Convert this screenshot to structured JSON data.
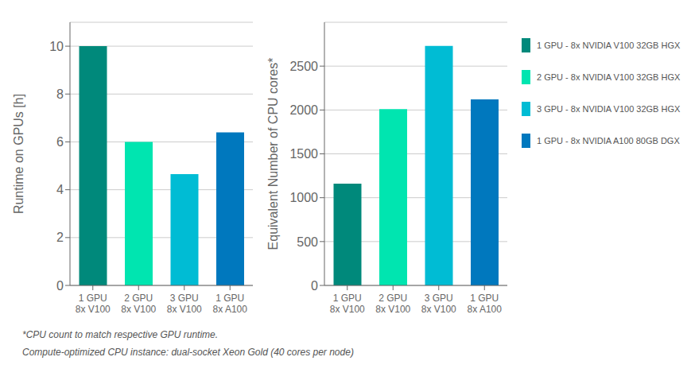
{
  "chart_data": [
    {
      "type": "bar",
      "categories": [
        "1 GPU\n8x V100",
        "2 GPU\n8x V100",
        "3 GPU\n8x V100",
        "1 GPU\n8x A100"
      ],
      "ylabel": "Runtime on GPUs [h]",
      "ylim": [
        0,
        11
      ],
      "yticks": [
        0,
        2,
        4,
        6,
        8,
        10
      ],
      "grid": true,
      "stacked": true,
      "legend": "right",
      "series": [
        {
          "name": "1 GPU - 8x NVIDIA V100 32GB HGX",
          "color": "#00897B",
          "values": [
            10.0,
            null,
            null,
            null
          ]
        },
        {
          "name": "2 GPU - 8x NVIDIA V100 32GB HGX",
          "color": "#00E5B0",
          "values": [
            null,
            6.0,
            null,
            null
          ]
        },
        {
          "name": "3 GPU - 8x NVIDIA V100 32GB HGX",
          "color": "#00BCD4",
          "values": [
            null,
            null,
            4.65,
            null
          ]
        },
        {
          "name": "1 GPU - 8x NVIDIA A100 80GB DGX",
          "color": "#0078BE",
          "values": [
            null,
            null,
            null,
            6.4
          ]
        }
      ]
    },
    {
      "type": "bar",
      "categories": [
        "1 GPU\n8x V100",
        "2 GPU\n8x V100",
        "3 GPU\n8x V100",
        "1 GPU\n8x A100"
      ],
      "ylabel": "Equivalent Number of CPU cores*",
      "ylim": [
        0,
        3000
      ],
      "yticks": [
        0,
        500,
        1000,
        1500,
        2000,
        2500
      ],
      "grid": true,
      "stacked": true,
      "legend": "right",
      "series": [
        {
          "name": "1 GPU - 8x NVIDIA V100 32GB HGX",
          "color": "#00897B",
          "values": [
            1160,
            null,
            null,
            null
          ]
        },
        {
          "name": "2 GPU - 8x NVIDIA V100 32GB HGX",
          "color": "#00E5B0",
          "values": [
            null,
            2010,
            null,
            null
          ]
        },
        {
          "name": "3 GPU - 8x NVIDIA V100 32GB HGX",
          "color": "#00BCD4",
          "values": [
            null,
            null,
            2730,
            null
          ]
        },
        {
          "name": "1 GPU - 8x NVIDIA A100 80GB DGX",
          "color": "#0078BE",
          "values": [
            null,
            null,
            null,
            2120
          ]
        }
      ],
      "annotations": [
        "*CPU count to match respective GPU runtime.",
        "Compute-optimized CPU instance: dual-socket Xeon Gold (40 cores per node)"
      ]
    }
  ]
}
